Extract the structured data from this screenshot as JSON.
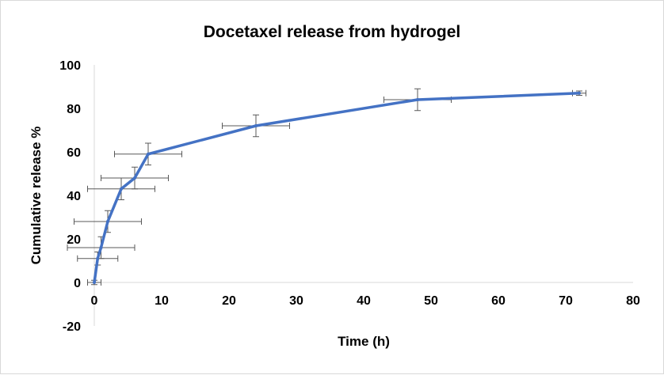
{
  "chart_data": {
    "type": "line",
    "title": "Docetaxel release from hydrogel",
    "xlabel": "Time (h)",
    "ylabel": "Cumulative release %",
    "xlim": [
      0,
      80
    ],
    "ylim": [
      -20,
      100
    ],
    "x_ticks": [
      "0",
      "10",
      "20",
      "30",
      "40",
      "50",
      "60",
      "70",
      "80"
    ],
    "y_ticks": [
      "-20",
      "0",
      "20",
      "40",
      "60",
      "80",
      "100"
    ],
    "grid": false,
    "legend": "none",
    "series": [
      {
        "color": "#4472c4",
        "x": [
          0,
          0.5,
          1,
          2,
          4,
          6,
          8,
          24,
          48,
          72
        ],
        "y": [
          0,
          11,
          16,
          28,
          43,
          48,
          59,
          72,
          84,
          87
        ],
        "error": [
          1,
          3,
          5,
          5,
          5,
          5,
          5,
          5,
          5,
          1
        ]
      }
    ]
  }
}
